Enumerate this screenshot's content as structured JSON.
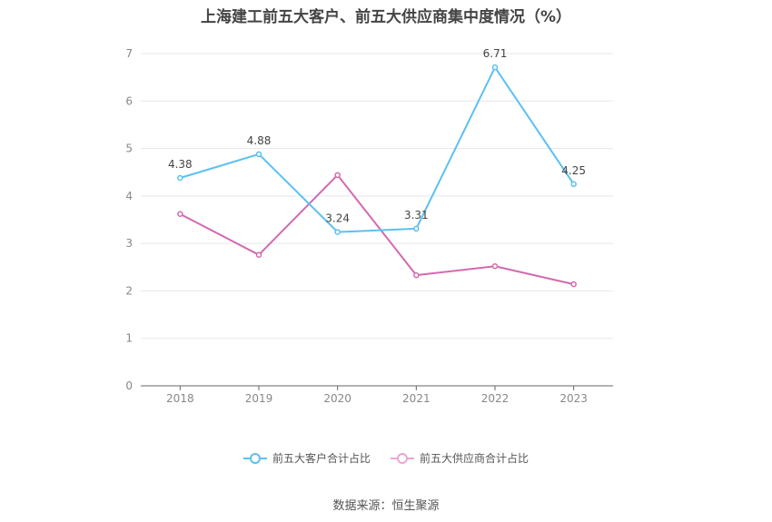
{
  "chart_data": {
    "type": "line",
    "title": "上海建工前五大客户、前五大供应商集中度情况（%）",
    "categories": [
      "2018",
      "2019",
      "2020",
      "2021",
      "2022",
      "2023"
    ],
    "ylim": [
      0,
      7
    ],
    "yticks": [
      0,
      1,
      2,
      3,
      4,
      5,
      6,
      7
    ],
    "grid": true,
    "legend_position": "bottom",
    "series": [
      {
        "name": "前五大客户合计占比",
        "color": "#5bc0f2",
        "values": [
          4.38,
          4.88,
          3.24,
          3.31,
          6.71,
          4.25
        ],
        "labels": [
          "4.38",
          "4.88",
          "3.24",
          "3.31",
          "6.71",
          "4.25"
        ]
      },
      {
        "name": "前五大供应商合计占比",
        "color": "#d36aae",
        "values": [
          3.62,
          2.76,
          4.44,
          2.33,
          2.52,
          2.14
        ]
      }
    ]
  },
  "source": "数据来源：恒生聚源"
}
